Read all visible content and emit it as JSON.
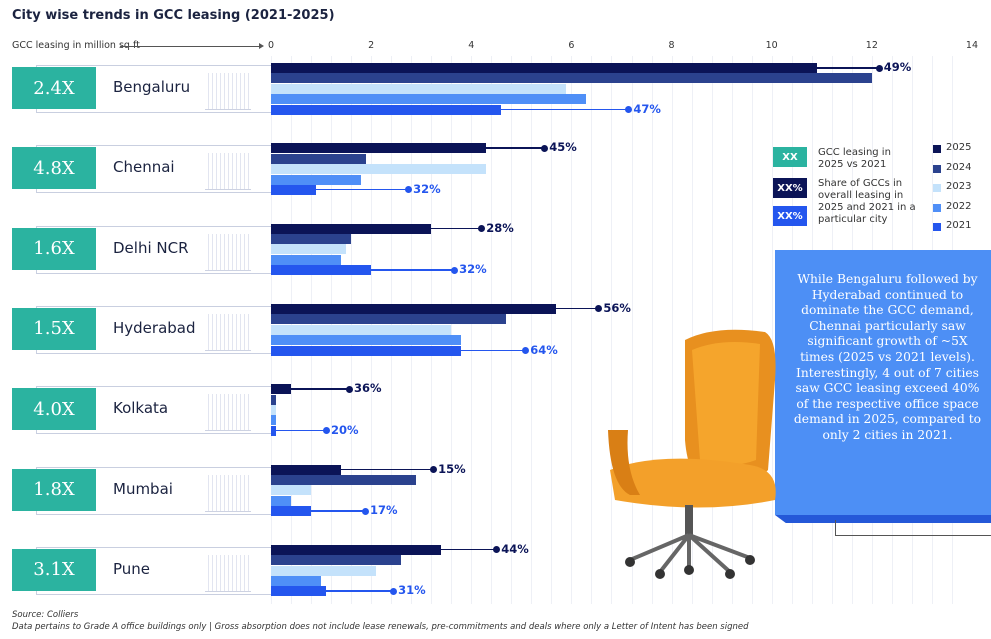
{
  "chart_data": {
    "type": "bar",
    "orientation": "horizontal",
    "title": "City wise trends in GCC leasing (2021-2025)",
    "xlabel": "GCC leasing in million sq ft",
    "xlim": [
      0,
      14
    ],
    "ticks": [
      "0",
      "2",
      "4",
      "6",
      "8",
      "10",
      "12",
      "14"
    ],
    "series_names": [
      "2025",
      "2024",
      "2023",
      "2022",
      "2021"
    ],
    "categories": [
      {
        "city": "Bengaluru",
        "multiplier": "2.4X",
        "values": [
          10.9,
          12.0,
          5.9,
          6.3,
          4.6
        ],
        "share_2025": "49%",
        "share_2021": "47%"
      },
      {
        "city": "Chennai",
        "multiplier": "4.8X",
        "values": [
          4.3,
          1.9,
          4.3,
          1.8,
          0.9
        ],
        "share_2025": "45%",
        "share_2021": "32%"
      },
      {
        "city": "Delhi NCR",
        "multiplier": "1.6X",
        "values": [
          3.2,
          1.6,
          1.5,
          1.4,
          2.0
        ],
        "share_2025": "28%",
        "share_2021": "32%"
      },
      {
        "city": "Hyderabad",
        "multiplier": "1.5X",
        "values": [
          5.7,
          4.7,
          3.6,
          3.8,
          3.8
        ],
        "share_2025": "56%",
        "share_2021": "64%"
      },
      {
        "city": "Kolkata",
        "multiplier": "4.0X",
        "values": [
          0.4,
          0.1,
          0.1,
          0.1,
          0.1
        ],
        "share_2025": "36%",
        "share_2021": "20%"
      },
      {
        "city": "Mumbai",
        "multiplier": "1.8X",
        "values": [
          1.4,
          2.9,
          0.8,
          0.4,
          0.8
        ],
        "share_2025": "15%",
        "share_2021": "17%"
      },
      {
        "city": "Pune",
        "multiplier": "3.1X",
        "values": [
          3.4,
          2.6,
          2.1,
          1.0,
          1.1
        ],
        "share_2025": "44%",
        "share_2021": "31%"
      }
    ],
    "legend_placement": "right"
  },
  "colors": {
    "2025": "#0b1457",
    "2024": "#2b428e",
    "2023": "#c4e2fb",
    "2022": "#4f8ff7",
    "2021": "#2456ee",
    "teal": "#2bb3a0"
  },
  "legend": {
    "xx_label": "XX",
    "xx_text": "GCC leasing in 2025 vs 2021",
    "xxpct_label": "XX%",
    "xxpct_text": "Share of GCCs in overall leasing in 2025 and 2021 in a particular city",
    "years": [
      "2025",
      "2024",
      "2023",
      "2022",
      "2021"
    ]
  },
  "callout": "While Bengaluru followed by Hyderabad continued to dominate the GCC demand, Chennai particularly saw significant growth of ~5X times (2025 vs 2021 levels). Interestingly, 4 out of 7 cities saw GCC leasing exceed 40% of the respective office space demand in 2025, compared to only 2 cities in 2021.",
  "footer": {
    "source": "Source: Colliers",
    "note": "Data pertains to Grade A office buildings only | Gross absorption does not include lease renewals, pre-commitments and deals where only a Letter of Intent has been signed"
  }
}
